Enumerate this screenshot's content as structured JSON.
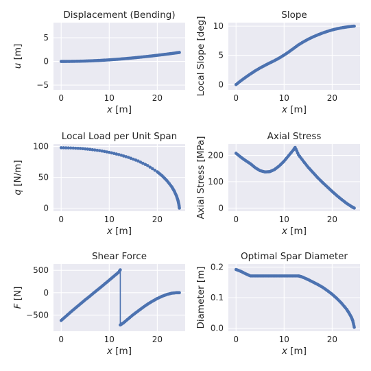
{
  "colors": {
    "series": "#4c72b0",
    "plot_bg": "#eaeaf2",
    "grid": "#ffffff",
    "text": "#262626"
  },
  "chart_data": [
    {
      "type": "line",
      "title": "Displacement (Bending)",
      "xlabel_var": "x",
      "xlabel_unit": " [m]",
      "ylabel_var": "u",
      "ylabel_unit": " [m]",
      "xlim": [
        -1.6,
        25.8
      ],
      "ylim": [
        -6.0,
        8.2
      ],
      "xticks": [
        0,
        10,
        20
      ],
      "yticks": [
        -5,
        0,
        5
      ],
      "ytick_labels": [
        "−5",
        "0",
        "5"
      ],
      "grid": true,
      "marker": "point",
      "x": [
        0,
        1,
        2,
        3,
        4,
        5,
        6,
        7,
        8,
        9,
        10,
        11,
        12,
        13,
        14,
        15,
        16,
        17,
        18,
        19,
        20,
        21,
        22,
        23,
        24,
        24.6
      ],
      "y": [
        0,
        0.003,
        0.013,
        0.03,
        0.053,
        0.083,
        0.12,
        0.163,
        0.213,
        0.27,
        0.333,
        0.403,
        0.48,
        0.565,
        0.655,
        0.75,
        0.85,
        0.955,
        1.065,
        1.18,
        1.3,
        1.42,
        1.55,
        1.68,
        1.82,
        1.9
      ]
    },
    {
      "type": "line",
      "title": "Slope",
      "xlabel_var": "x",
      "xlabel_unit": " [m]",
      "ylabel": "Local Slope [deg]",
      "xlim": [
        -1.6,
        25.8
      ],
      "ylim": [
        -0.9,
        10.6
      ],
      "xticks": [
        0,
        10,
        20
      ],
      "yticks": [
        0,
        5,
        10
      ],
      "ytick_labels": [
        "0",
        "5",
        "10"
      ],
      "grid": true,
      "marker": "point",
      "x": [
        0,
        1,
        2,
        3,
        4,
        5,
        6,
        7,
        8,
        9,
        10,
        11,
        12,
        13,
        14,
        15,
        16,
        17,
        18,
        19,
        20,
        21,
        22,
        23,
        24,
        24.6
      ],
      "y": [
        0,
        0.65,
        1.25,
        1.82,
        2.35,
        2.84,
        3.28,
        3.7,
        4.1,
        4.55,
        5.05,
        5.6,
        6.2,
        6.8,
        7.3,
        7.75,
        8.15,
        8.5,
        8.82,
        9.1,
        9.35,
        9.55,
        9.72,
        9.85,
        9.95,
        10.0
      ]
    },
    {
      "type": "line",
      "title": "Local Load per Unit Span",
      "xlabel_var": "x",
      "xlabel_unit": " [m]",
      "ylabel_var": "q",
      "ylabel_unit": " [N/m]",
      "xlim": [
        -1.6,
        25.8
      ],
      "ylim": [
        -5,
        104
      ],
      "xticks": [
        0,
        10,
        20
      ],
      "yticks": [
        0,
        50,
        100
      ],
      "ytick_labels": [
        "0",
        "50",
        "100"
      ],
      "grid": true,
      "marker": "point",
      "x": [
        0,
        2,
        4,
        6,
        8,
        10,
        12,
        14,
        16,
        18,
        20,
        21,
        22,
        23,
        23.5,
        24,
        24.3,
        24.5,
        24.6
      ],
      "y": [
        98,
        97.6,
        96.8,
        95.3,
        93.3,
        90.5,
        86.9,
        82.3,
        76.5,
        69.0,
        58.9,
        52.5,
        44.7,
        34.7,
        28.2,
        19.7,
        12.7,
        5.8,
        0
      ]
    },
    {
      "type": "line",
      "title": "Axial Stress",
      "xlabel_var": "x",
      "xlabel_unit": " [m]",
      "ylabel": "Axial Stress [MPa]",
      "xlim": [
        -1.6,
        25.8
      ],
      "ylim": [
        -12,
        243
      ],
      "xticks": [
        0,
        10,
        20
      ],
      "yticks": [
        0,
        100,
        200
      ],
      "ytick_labels": [
        "0",
        "100",
        "200"
      ],
      "grid": true,
      "marker": "point",
      "x": [
        0,
        1,
        2,
        3,
        4,
        5,
        6,
        7,
        8,
        9,
        10,
        11,
        12,
        12.3,
        13,
        14,
        15,
        16,
        17,
        18,
        19,
        20,
        21,
        22,
        23,
        24,
        24.6
      ],
      "y": [
        208,
        193,
        180,
        168,
        153,
        142,
        137,
        138,
        146,
        160,
        178,
        200,
        222,
        230,
        202,
        178,
        155,
        135,
        115,
        97,
        80,
        63,
        47,
        32,
        18,
        6,
        0
      ]
    },
    {
      "type": "line",
      "title": "Shear Force",
      "xlabel_var": "x",
      "xlabel_unit": " [m]",
      "ylabel_var": "F",
      "ylabel_unit": " [N]",
      "xlim": [
        -1.6,
        25.8
      ],
      "ylim": [
        -860,
        640
      ],
      "xticks": [
        0,
        10,
        20
      ],
      "yticks": [
        -500,
        0,
        500
      ],
      "ytick_labels": [
        "−500",
        "0",
        "500"
      ],
      "grid": true,
      "marker": "point",
      "x": [
        0,
        1,
        2,
        3,
        4,
        5,
        6,
        7,
        8,
        9,
        10,
        11,
        12,
        12.3,
        12.3,
        13,
        14,
        15,
        16,
        17,
        18,
        19,
        20,
        21,
        22,
        23,
        24,
        24.6
      ],
      "y": [
        -620,
        -525,
        -430,
        -340,
        -250,
        -160,
        -75,
        15,
        100,
        190,
        280,
        370,
        460,
        510,
        -720,
        -670,
        -580,
        -490,
        -410,
        -330,
        -255,
        -190,
        -130,
        -80,
        -40,
        -12,
        0,
        0
      ]
    },
    {
      "type": "line",
      "title": "Optimal Spar Diameter",
      "xlabel_var": "x",
      "xlabel_unit": " [m]",
      "ylabel": "Diameter [m]",
      "xlim": [
        -1.6,
        25.8
      ],
      "ylim": [
        -0.01,
        0.21
      ],
      "xticks": [
        0,
        10,
        20
      ],
      "yticks": [
        0.0,
        0.1,
        0.2
      ],
      "ytick_labels": [
        "0.0",
        "0.1",
        "0.2"
      ],
      "grid": true,
      "marker": "point",
      "x": [
        0,
        1,
        2,
        3,
        4,
        5,
        6,
        7,
        8,
        9,
        10,
        11,
        12,
        13,
        13.5,
        14,
        15,
        16,
        17,
        18,
        19,
        20,
        21,
        22,
        23,
        23.5,
        24,
        24.3,
        24.6
      ],
      "y": [
        0.192,
        0.186,
        0.178,
        0.171,
        0.171,
        0.171,
        0.171,
        0.171,
        0.171,
        0.171,
        0.171,
        0.171,
        0.171,
        0.171,
        0.169,
        0.166,
        0.159,
        0.151,
        0.143,
        0.134,
        0.123,
        0.111,
        0.097,
        0.081,
        0.062,
        0.05,
        0.036,
        0.024,
        0.003
      ]
    }
  ]
}
